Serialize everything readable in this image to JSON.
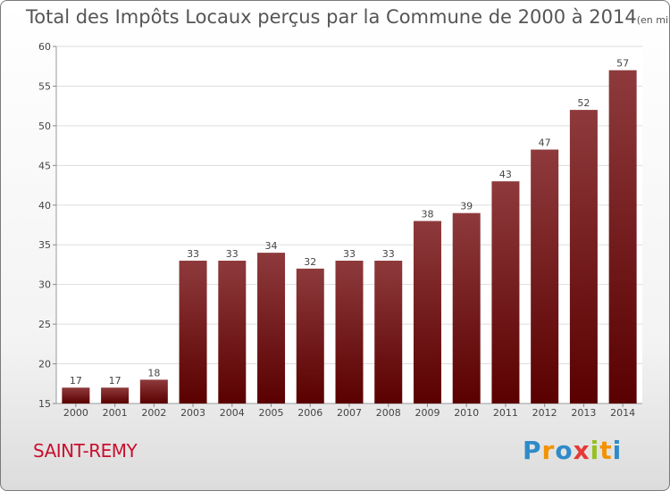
{
  "title": {
    "main": "Total des Impôts Locaux perçus par la Commune de 2000 à 2014",
    "sub": "(en milliers d'€)"
  },
  "commune": "SAINT-REMY",
  "brand": {
    "letters": [
      "P",
      "r",
      "o",
      "x",
      "i",
      "t",
      "i"
    ],
    "colors": [
      "#2e8bc9",
      "#f39200",
      "#2e8bc9",
      "#e53935",
      "#95c11f",
      "#f39200",
      "#2e8bc9"
    ]
  },
  "colors": {
    "bar_top": "#8e3a3c",
    "bar_bottom": "#5a0000",
    "grid": "#dddddd",
    "axis_text": "#444444"
  },
  "chart_data": {
    "type": "bar",
    "categories": [
      "2000",
      "2001",
      "2002",
      "2003",
      "2004",
      "2005",
      "2006",
      "2007",
      "2008",
      "2009",
      "2010",
      "2011",
      "2012",
      "2013",
      "2014"
    ],
    "values": [
      17,
      17,
      18,
      33,
      33,
      34,
      32,
      33,
      33,
      38,
      39,
      43,
      47,
      52,
      57
    ],
    "ylim": [
      15,
      60
    ],
    "yticks": [
      15,
      20,
      25,
      30,
      35,
      40,
      45,
      50,
      55,
      60
    ],
    "grid": true,
    "legend": "none"
  }
}
